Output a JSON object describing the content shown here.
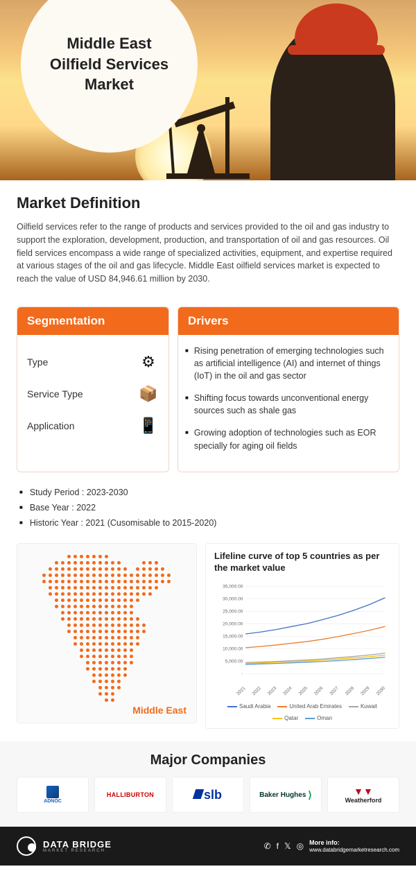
{
  "hero": {
    "title_line1": "Middle East",
    "title_line2": "Oilfield Services",
    "title_line3": "Market"
  },
  "definition": {
    "heading": "Market Definition",
    "text": "Oilfield services refer to the range of products and services provided to the oil and gas industry to support the exploration, development, production, and transportation of oil and gas resources. Oil field services encompass a wide range of specialized activities, equipment, and expertise required at various stages of the oil and gas lifecycle. Middle East oilfield services market is expected to reach the value of USD 84,946.61 million by 2030."
  },
  "segmentation": {
    "heading": "Segmentation",
    "items": [
      {
        "label": "Type",
        "icon": "⚙"
      },
      {
        "label": "Service Type",
        "icon": "📦"
      },
      {
        "label": "Application",
        "icon": "📱"
      }
    ]
  },
  "drivers": {
    "heading": "Drivers",
    "items": [
      "Rising penetration of emerging technologies such as artificial intelligence (AI) and internet of things (IoT) in the oil and gas sector",
      "Shifting focus towards unconventional energy sources such as shale gas",
      "Growing adoption of technologies such as EOR specially for aging oil fields"
    ]
  },
  "meta": {
    "items": [
      "Study Period : 2023-2030",
      "Base Year : 2022",
      "Historic Year : 2021 (Cusomisable to 2015-2020)"
    ]
  },
  "map": {
    "label": "Middle East"
  },
  "chart": {
    "title": "Lifeline curve of top 5 countries as per the market value",
    "type": "line",
    "x_labels": [
      "2021",
      "2022",
      "2023",
      "2024",
      "2025",
      "2026",
      "2027",
      "2028",
      "2029",
      "2030"
    ],
    "y_ticks": [
      "-",
      "5,000.00",
      "10,000.00",
      "15,000.00",
      "20,000.00",
      "25,000.00",
      "30,000.00",
      "35,000.00"
    ],
    "ylim": [
      0,
      35000
    ],
    "grid_color": "#e5e5e5",
    "background_color": "#ffffff",
    "series": [
      {
        "name": "Saudi Arabia",
        "color": "#4472c4",
        "values": [
          16000,
          16800,
          17800,
          19000,
          20200,
          21800,
          23500,
          25500,
          27800,
          30500
        ]
      },
      {
        "name": "United Arab Emirates",
        "color": "#ed7d31",
        "values": [
          10500,
          11000,
          11600,
          12300,
          13000,
          13900,
          15000,
          16200,
          17500,
          19000
        ]
      },
      {
        "name": "Kuwait",
        "color": "#a5a5a5",
        "values": [
          4500,
          4700,
          5000,
          5300,
          5600,
          6000,
          6500,
          7000,
          7600,
          8300
        ]
      },
      {
        "name": "Qatar",
        "color": "#ffc000",
        "values": [
          4200,
          4400,
          4650,
          4900,
          5200,
          5550,
          5950,
          6400,
          6900,
          7500
        ]
      },
      {
        "name": "Oman",
        "color": "#5b9bd5",
        "values": [
          3800,
          4000,
          4200,
          4450,
          4700,
          5000,
          5350,
          5750,
          6200,
          6700
        ]
      }
    ]
  },
  "companies": {
    "heading": "Major Companies",
    "list": [
      {
        "name": "ADNOC",
        "style": "adnoc"
      },
      {
        "name": "HALLIBURTON",
        "style": "halli",
        "color": "#cc0000"
      },
      {
        "name": "slb",
        "style": "slb"
      },
      {
        "name": "Baker Hughes",
        "style": "bh"
      },
      {
        "name": "Weatherford",
        "style": "wf"
      }
    ]
  },
  "footer": {
    "brand1": "DATA BRIDGE",
    "brand2": "MARKET RESEARCH",
    "more1": "More info:",
    "more2": "www.databridgemarketresearch.com"
  }
}
